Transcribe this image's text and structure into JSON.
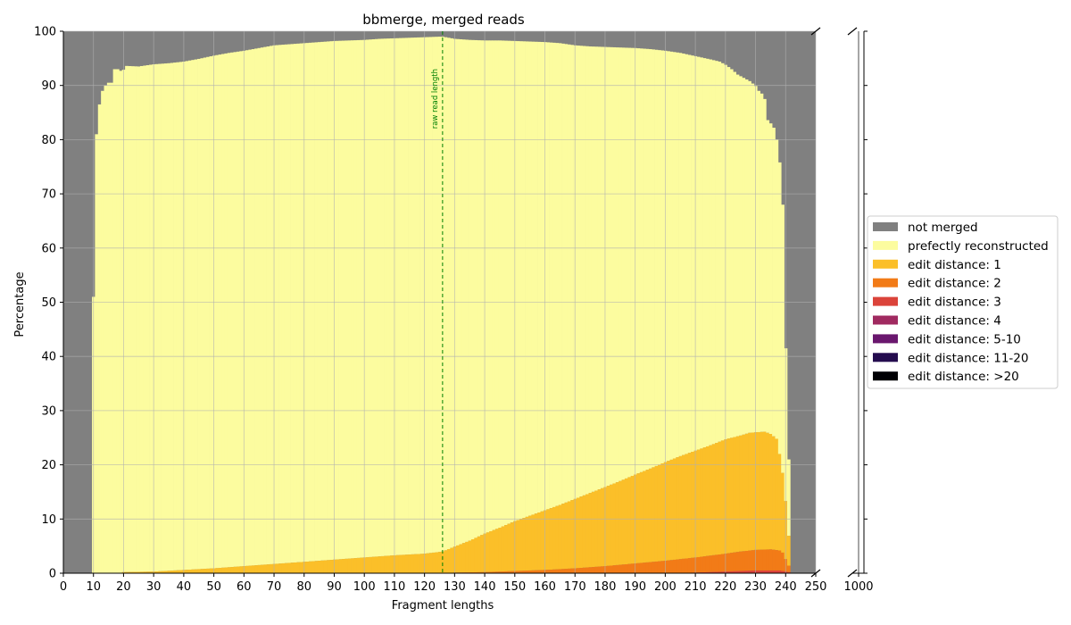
{
  "chart_data": {
    "type": "bar",
    "stacked": true,
    "title": "bbmerge, merged reads",
    "xlabel": "Fragment lengths",
    "ylabel": "Percentage",
    "ylim": [
      0,
      100
    ],
    "xlim_main": [
      0,
      250
    ],
    "xlim_break": [
      995,
      1005
    ],
    "x_ticks": [
      "0",
      "10",
      "20",
      "30",
      "40",
      "50",
      "60",
      "70",
      "80",
      "90",
      "100",
      "110",
      "120",
      "130",
      "140",
      "150",
      "160",
      "170",
      "180",
      "190",
      "200",
      "210",
      "220",
      "230",
      "240",
      "250"
    ],
    "x_ticks_break": [
      "1000"
    ],
    "y_ticks": [
      "0",
      "10",
      "20",
      "30",
      "40",
      "50",
      "60",
      "70",
      "80",
      "90",
      "100"
    ],
    "grid": true,
    "legend_position": "right",
    "annotation": {
      "text": "raw read length",
      "x": 126
    },
    "x_start": 10,
    "x_end": 241,
    "series": [
      {
        "name": "not merged",
        "color": "#808080"
      },
      {
        "name": "prefectly reconstructed",
        "color": "#fcfc9f"
      },
      {
        "name": "edit distance: 1",
        "color": "#fbbf29"
      },
      {
        "name": "edit distance: 2",
        "color": "#f27b17"
      },
      {
        "name": "edit distance: 3",
        "color": "#db433a"
      },
      {
        "name": "edit distance: 4",
        "color": "#a02a60"
      },
      {
        "name": "edit distance: 5-10",
        "color": "#6a176e"
      },
      {
        "name": "edit distance: 11-20",
        "color": "#240c4e"
      },
      {
        "name": "edit distance: >20",
        "color": "#000004"
      }
    ],
    "merged_total_keypoints": [
      [
        10,
        51
      ],
      [
        11,
        81
      ],
      [
        12,
        86.5
      ],
      [
        13,
        89
      ],
      [
        14,
        90
      ],
      [
        15,
        90.5
      ],
      [
        16,
        90.5
      ],
      [
        17,
        93
      ],
      [
        18,
        93
      ],
      [
        19,
        92.7
      ],
      [
        20,
        92.9
      ],
      [
        21,
        93.6
      ],
      [
        25,
        93.5
      ],
      [
        30,
        93.9
      ],
      [
        35,
        94.1
      ],
      [
        40,
        94.4
      ],
      [
        45,
        94.9
      ],
      [
        50,
        95.5
      ],
      [
        55,
        96
      ],
      [
        60,
        96.4
      ],
      [
        65,
        96.9
      ],
      [
        70,
        97.4
      ],
      [
        75,
        97.6
      ],
      [
        80,
        97.8
      ],
      [
        85,
        98
      ],
      [
        90,
        98.2
      ],
      [
        95,
        98.3
      ],
      [
        100,
        98.4
      ],
      [
        105,
        98.6
      ],
      [
        110,
        98.7
      ],
      [
        115,
        98.8
      ],
      [
        120,
        98.9
      ],
      [
        125,
        99
      ],
      [
        126,
        99
      ],
      [
        130,
        98.6
      ],
      [
        135,
        98.4
      ],
      [
        140,
        98.3
      ],
      [
        145,
        98.3
      ],
      [
        150,
        98.2
      ],
      [
        155,
        98.1
      ],
      [
        160,
        98
      ],
      [
        165,
        97.8
      ],
      [
        170,
        97.4
      ],
      [
        175,
        97.2
      ],
      [
        180,
        97.1
      ],
      [
        185,
        97
      ],
      [
        190,
        96.9
      ],
      [
        195,
        96.7
      ],
      [
        200,
        96.4
      ],
      [
        205,
        96
      ],
      [
        210,
        95.4
      ],
      [
        215,
        94.8
      ],
      [
        218,
        94.4
      ],
      [
        220,
        93.8
      ],
      [
        222,
        93
      ],
      [
        224,
        92
      ],
      [
        226,
        91.4
      ],
      [
        228,
        90.8
      ],
      [
        230,
        89.9
      ],
      [
        231,
        89
      ],
      [
        232,
        88.5
      ],
      [
        233,
        87.5
      ],
      [
        234,
        83.6
      ],
      [
        235,
        83
      ],
      [
        236,
        82.2
      ],
      [
        237,
        80
      ],
      [
        238,
        75.8
      ],
      [
        239,
        68
      ],
      [
        240,
        41.5
      ],
      [
        241,
        21
      ]
    ],
    "ed1_top_keypoints": [
      [
        10,
        0
      ],
      [
        19,
        0
      ],
      [
        20,
        0.2
      ],
      [
        30,
        0.3
      ],
      [
        40,
        0.6
      ],
      [
        50,
        0.9
      ],
      [
        60,
        1.3
      ],
      [
        70,
        1.7
      ],
      [
        80,
        2.1
      ],
      [
        90,
        2.5
      ],
      [
        100,
        2.9
      ],
      [
        110,
        3.3
      ],
      [
        120,
        3.6
      ],
      [
        126,
        4
      ],
      [
        130,
        4.9
      ],
      [
        135,
        6
      ],
      [
        140,
        7.3
      ],
      [
        145,
        8.4
      ],
      [
        150,
        9.6
      ],
      [
        155,
        10.6
      ],
      [
        160,
        11.6
      ],
      [
        165,
        12.6
      ],
      [
        170,
        13.7
      ],
      [
        175,
        14.8
      ],
      [
        180,
        15.9
      ],
      [
        185,
        17
      ],
      [
        190,
        18.2
      ],
      [
        195,
        19.3
      ],
      [
        200,
        20.5
      ],
      [
        205,
        21.6
      ],
      [
        210,
        22.6
      ],
      [
        215,
        23.6
      ],
      [
        220,
        24.7
      ],
      [
        225,
        25.4
      ],
      [
        228,
        25.9
      ],
      [
        230,
        26
      ],
      [
        233,
        26.1
      ],
      [
        235,
        25.7
      ],
      [
        237,
        24.8
      ],
      [
        238,
        22
      ],
      [
        239,
        18.5
      ],
      [
        240,
        13.3
      ],
      [
        241,
        6.9
      ]
    ],
    "ed2_top_keypoints": [
      [
        10,
        0
      ],
      [
        125,
        0
      ],
      [
        130,
        0.1
      ],
      [
        140,
        0.2
      ],
      [
        150,
        0.4
      ],
      [
        160,
        0.6
      ],
      [
        170,
        0.9
      ],
      [
        180,
        1.3
      ],
      [
        190,
        1.8
      ],
      [
        200,
        2.3
      ],
      [
        210,
        2.9
      ],
      [
        220,
        3.6
      ],
      [
        225,
        4
      ],
      [
        230,
        4.3
      ],
      [
        235,
        4.4
      ],
      [
        238,
        4.2
      ],
      [
        239,
        3.8
      ],
      [
        240,
        2.6
      ],
      [
        241,
        1.4
      ]
    ],
    "ed3_top_keypoints": [
      [
        10,
        0
      ],
      [
        200,
        0
      ],
      [
        210,
        0.1
      ],
      [
        220,
        0.3
      ],
      [
        230,
        0.5
      ],
      [
        238,
        0.5
      ],
      [
        240,
        0.3
      ],
      [
        241,
        0.2
      ]
    ],
    "broken_axis_bar": {
      "x": 1000,
      "not_merged": 100
    }
  }
}
